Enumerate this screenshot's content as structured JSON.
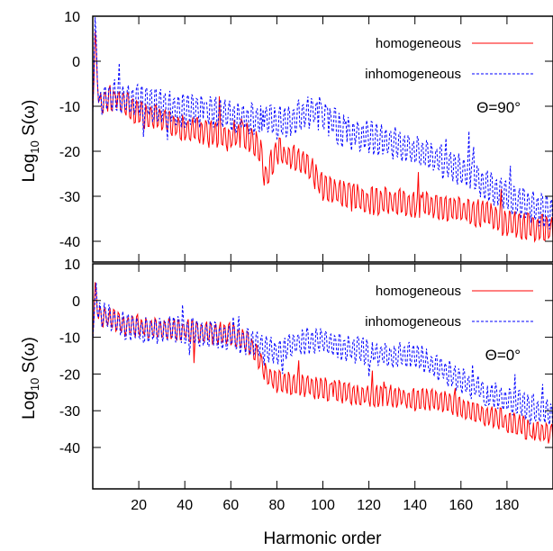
{
  "chart_data": [
    {
      "type": "line",
      "panel": "top",
      "xlabel": "",
      "ylabel": "Log10 S(ω)",
      "ylabel_main": "Log",
      "ylabel_sub": "10",
      "ylabel_tail": " S(ω)",
      "xlim": [
        0,
        200
      ],
      "ylim": [
        -45,
        10
      ],
      "yticks": [
        10,
        0,
        -10,
        -20,
        -30,
        -40
      ],
      "ytick_labels": [
        "10",
        "0",
        "-10",
        "-20",
        "-30",
        "-40"
      ],
      "xticks": [
        20,
        40,
        60,
        80,
        100,
        120,
        140,
        160,
        180
      ],
      "annotation": "Θ=90°",
      "legend_position": "top-right",
      "series": [
        {
          "name": "homogeneous",
          "color": "#ff0000",
          "style": "solid",
          "x": [
            0,
            1,
            3,
            6,
            10,
            15,
            20,
            30,
            40,
            50,
            60,
            65,
            70,
            73,
            75,
            78,
            80,
            85,
            90,
            95,
            100,
            110,
            120,
            130,
            140,
            150,
            160,
            170,
            180,
            190,
            199
          ],
          "y": [
            -8,
            5,
            -10,
            -8,
            -9,
            -10,
            -12,
            -13,
            -15,
            -16,
            -17,
            -16,
            -18,
            -20,
            -26,
            -22,
            -20,
            -21,
            -22,
            -24,
            -28,
            -30,
            -31,
            -31,
            -32,
            -32,
            -33,
            -34,
            -36,
            -37,
            -37
          ]
        },
        {
          "name": "inhomogeneous",
          "color": "#0000ff",
          "style": "dashed",
          "x": [
            0,
            1,
            3,
            6,
            10,
            15,
            20,
            30,
            40,
            50,
            60,
            70,
            75,
            80,
            85,
            90,
            95,
            100,
            110,
            120,
            130,
            140,
            150,
            160,
            170,
            180,
            190,
            199
          ],
          "y": [
            -8,
            6,
            -10,
            -8,
            -7,
            -9,
            -9,
            -10,
            -11,
            -11,
            -12,
            -13,
            -13,
            -14,
            -13,
            -12,
            -11,
            -12,
            -16,
            -17,
            -18,
            -20,
            -22,
            -24,
            -27,
            -30,
            -32,
            -34
          ]
        }
      ]
    },
    {
      "type": "line",
      "panel": "bottom",
      "xlabel": "Harmonic order",
      "ylabel": "Log10 S(ω)",
      "ylabel_main": "Log",
      "ylabel_sub": "10",
      "ylabel_tail": " S(ω)",
      "xlim": [
        0,
        200
      ],
      "ylim": [
        -45,
        10
      ],
      "yticks": [
        10,
        0,
        -10,
        -20,
        -30,
        -40
      ],
      "ytick_labels": [
        "10",
        "0",
        "-10",
        "-20",
        "-30",
        "-40"
      ],
      "xticks": [
        20,
        40,
        60,
        80,
        100,
        120,
        140,
        160,
        180
      ],
      "xtick_labels": [
        "20",
        "40",
        "60",
        "80",
        "100",
        "120",
        "140",
        "160",
        "180"
      ],
      "annotation": "Θ=0°",
      "legend_position": "top-right",
      "series": [
        {
          "name": "homogeneous",
          "color": "#ff0000",
          "style": "solid",
          "x": [
            0,
            1,
            3,
            6,
            10,
            15,
            20,
            30,
            40,
            50,
            60,
            65,
            68,
            70,
            73,
            75,
            80,
            90,
            100,
            110,
            120,
            130,
            140,
            150,
            160,
            170,
            180,
            190,
            199
          ],
          "y": [
            -8,
            3,
            -5,
            -4,
            -6,
            -7,
            -7,
            -8,
            -8,
            -9,
            -9,
            -10,
            -12,
            -14,
            -17,
            -20,
            -22,
            -23,
            -24,
            -25,
            -26,
            -26,
            -27,
            -27,
            -29,
            -31,
            -33,
            -35,
            -36
          ]
        },
        {
          "name": "inhomogeneous",
          "color": "#0000ff",
          "style": "dashed",
          "x": [
            0,
            1,
            3,
            6,
            10,
            15,
            20,
            30,
            40,
            50,
            60,
            70,
            80,
            85,
            90,
            95,
            100,
            110,
            120,
            130,
            140,
            150,
            160,
            170,
            180,
            190,
            199
          ],
          "y": [
            -8,
            4,
            -4,
            -4,
            -6,
            -7,
            -8,
            -8,
            -8,
            -9,
            -10,
            -12,
            -14,
            -12,
            -11,
            -11,
            -11,
            -13,
            -14,
            -15,
            -15,
            -18,
            -22,
            -25,
            -27,
            -29,
            -31
          ]
        }
      ]
    }
  ]
}
